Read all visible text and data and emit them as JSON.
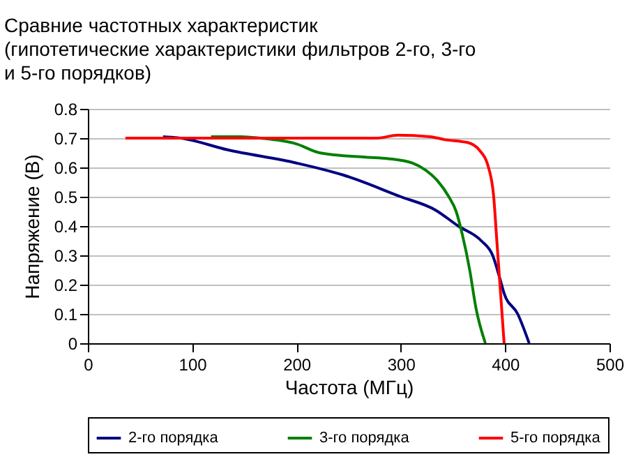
{
  "chart_data": {
    "type": "line",
    "title": [
      "Сравние частотных характеристик",
      "(гипотетические характеристики фильтров 2-го, 3-го",
      "и 5-го порядков)"
    ],
    "xlabel": "Частота (МГц)",
    "ylabel": "Напряжение (В)",
    "xlim": [
      0,
      500
    ],
    "xticks": [
      0,
      100,
      200,
      300,
      400,
      500
    ],
    "ylim": [
      0,
      0.8
    ],
    "yticks": [
      0,
      0.1,
      0.2,
      0.3,
      0.4,
      0.5,
      0.6,
      0.7,
      0.8
    ],
    "grid": "y",
    "legend": "bottom",
    "series": [
      {
        "name": "2-го порядка",
        "color": "#000080",
        "x": [
          72,
          89,
          134,
          200,
          244,
          300,
          333,
          355,
          377,
          388,
          395,
          399,
          412,
          423
        ],
        "values": [
          0.705,
          0.7,
          0.66,
          0.615,
          0.575,
          0.5,
          0.455,
          0.4,
          0.35,
          0.3,
          0.22,
          0.17,
          0.1,
          0
        ]
      },
      {
        "name": "3-го порядка",
        "color": "#008000",
        "x": [
          118,
          147,
          165,
          200,
          222,
          266,
          288,
          311,
          324,
          335,
          346,
          353,
          359,
          366,
          372,
          381
        ],
        "values": [
          0.705,
          0.705,
          0.7,
          0.68,
          0.65,
          0.635,
          0.63,
          0.615,
          0.59,
          0.555,
          0.5,
          0.45,
          0.37,
          0.25,
          0.12,
          0
        ]
      },
      {
        "name": "5-го порядка",
        "color": "#ff0000",
        "x": [
          36,
          277,
          297,
          328,
          342,
          364,
          375,
          384,
          389,
          392,
          395,
          399
        ],
        "values": [
          0.7,
          0.7,
          0.71,
          0.705,
          0.695,
          0.685,
          0.66,
          0.6,
          0.5,
          0.35,
          0.2,
          0
        ]
      }
    ]
  }
}
